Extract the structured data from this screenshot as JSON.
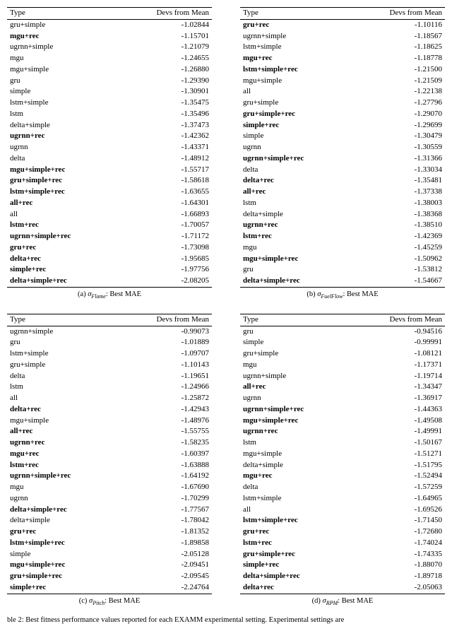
{
  "headers": {
    "type": "Type",
    "devs": "Devs from Mean"
  },
  "panels": [
    {
      "id": "a",
      "caption_prefix": "(a) ",
      "sigma_sub": "Flame",
      "caption_suffix": ": Best MAE",
      "rows": [
        {
          "t": "gru+simple",
          "v": "-1.02844",
          "b": false
        },
        {
          "t": "mgu+rec",
          "v": "-1.15701",
          "b": true
        },
        {
          "t": "ugrnn+simple",
          "v": "-1.21079",
          "b": false
        },
        {
          "t": "mgu",
          "v": "-1.24655",
          "b": false
        },
        {
          "t": "mgu+simple",
          "v": "-1.26880",
          "b": false
        },
        {
          "t": "gru",
          "v": "-1.29390",
          "b": false
        },
        {
          "t": "simple",
          "v": "-1.30901",
          "b": false
        },
        {
          "t": "lstm+simple",
          "v": "-1.35475",
          "b": false
        },
        {
          "t": "lstm",
          "v": "-1.35496",
          "b": false
        },
        {
          "t": "delta+simple",
          "v": "-1.37473",
          "b": false
        },
        {
          "t": "ugrnn+rec",
          "v": "-1.42362",
          "b": true
        },
        {
          "t": "ugrnn",
          "v": "-1.43371",
          "b": false
        },
        {
          "t": "delta",
          "v": "-1.48912",
          "b": false
        },
        {
          "t": "mgu+simple+rec",
          "v": "-1.55717",
          "b": true
        },
        {
          "t": "gru+simple+rec",
          "v": "-1.58618",
          "b": true
        },
        {
          "t": "lstm+simple+rec",
          "v": "-1.63655",
          "b": true
        },
        {
          "t": "all+rec",
          "v": "-1.64301",
          "b": true
        },
        {
          "t": "all",
          "v": "-1.66893",
          "b": false
        },
        {
          "t": "lstm+rec",
          "v": "-1.70057",
          "b": true
        },
        {
          "t": "ugrnn+simple+rec",
          "v": "-1.71172",
          "b": true
        },
        {
          "t": "gru+rec",
          "v": "-1.73098",
          "b": true
        },
        {
          "t": "delta+rec",
          "v": "-1.95685",
          "b": true
        },
        {
          "t": "simple+rec",
          "v": "-1.97756",
          "b": true
        },
        {
          "t": "delta+simple+rec",
          "v": "-2.08205",
          "b": true
        }
      ]
    },
    {
      "id": "b",
      "caption_prefix": "(b) ",
      "sigma_sub": "FuelFlow",
      "caption_suffix": ": Best MAE",
      "rows": [
        {
          "t": "gru+rec",
          "v": "-1.10116",
          "b": true
        },
        {
          "t": "ugrnn+simple",
          "v": "-1.18567",
          "b": false
        },
        {
          "t": "lstm+simple",
          "v": "-1.18625",
          "b": false
        },
        {
          "t": "mgu+rec",
          "v": "-1.18778",
          "b": true
        },
        {
          "t": "lstm+simple+rec",
          "v": "-1.21500",
          "b": true
        },
        {
          "t": "mgu+simple",
          "v": "-1.21509",
          "b": false
        },
        {
          "t": "all",
          "v": "-1.22138",
          "b": false
        },
        {
          "t": "gru+simple",
          "v": "-1.27796",
          "b": false
        },
        {
          "t": "gru+simple+rec",
          "v": "-1.29070",
          "b": true
        },
        {
          "t": "simple+rec",
          "v": "-1.29699",
          "b": true
        },
        {
          "t": "simple",
          "v": "-1.30479",
          "b": false
        },
        {
          "t": "ugrnn",
          "v": "-1.30559",
          "b": false
        },
        {
          "t": "ugrnn+simple+rec",
          "v": "-1.31366",
          "b": true
        },
        {
          "t": "delta",
          "v": "-1.33034",
          "b": false
        },
        {
          "t": "delta+rec",
          "v": "-1.35481",
          "b": true
        },
        {
          "t": "all+rec",
          "v": "-1.37338",
          "b": true
        },
        {
          "t": "lstm",
          "v": "-1.38003",
          "b": false
        },
        {
          "t": "delta+simple",
          "v": "-1.38368",
          "b": false
        },
        {
          "t": "ugrnn+rec",
          "v": "-1.38510",
          "b": true
        },
        {
          "t": "lstm+rec",
          "v": "-1.42369",
          "b": true
        },
        {
          "t": "mgu",
          "v": "-1.45259",
          "b": false
        },
        {
          "t": "mgu+simple+rec",
          "v": "-1.50962",
          "b": true
        },
        {
          "t": "gru",
          "v": "-1.53812",
          "b": false
        },
        {
          "t": "delta+simple+rec",
          "v": "-1.54667",
          "b": true
        }
      ]
    },
    {
      "id": "c",
      "caption_prefix": "(c) ",
      "sigma_sub": "Pitch",
      "caption_suffix": ": Best MAE",
      "rows": [
        {
          "t": "ugrnn+simple",
          "v": "-0.99073",
          "b": false
        },
        {
          "t": "gru",
          "v": "-1.01889",
          "b": false
        },
        {
          "t": "lstm+simple",
          "v": "-1.09707",
          "b": false
        },
        {
          "t": "gru+simple",
          "v": "-1.10143",
          "b": false
        },
        {
          "t": "delta",
          "v": "-1.19651",
          "b": false
        },
        {
          "t": "lstm",
          "v": "-1.24966",
          "b": false
        },
        {
          "t": "all",
          "v": "-1.25872",
          "b": false
        },
        {
          "t": "delta+rec",
          "v": "-1.42943",
          "b": true
        },
        {
          "t": "mgu+simple",
          "v": "-1.48976",
          "b": false
        },
        {
          "t": "all+rec",
          "v": "-1.55755",
          "b": true
        },
        {
          "t": "ugrnn+rec",
          "v": "-1.58235",
          "b": true
        },
        {
          "t": "mgu+rec",
          "v": "-1.60397",
          "b": true
        },
        {
          "t": "lstm+rec",
          "v": "-1.63888",
          "b": true
        },
        {
          "t": "ugrnn+simple+rec",
          "v": "-1.64192",
          "b": true
        },
        {
          "t": "mgu",
          "v": "-1.67690",
          "b": false
        },
        {
          "t": "ugrnn",
          "v": "-1.70299",
          "b": false
        },
        {
          "t": "delta+simple+rec",
          "v": "-1.77567",
          "b": true
        },
        {
          "t": "delta+simple",
          "v": "-1.78042",
          "b": false
        },
        {
          "t": "gru+rec",
          "v": "-1.81352",
          "b": true
        },
        {
          "t": "lstm+simple+rec",
          "v": "-1.89858",
          "b": true
        },
        {
          "t": "simple",
          "v": "-2.05128",
          "b": false
        },
        {
          "t": "mgu+simple+rec",
          "v": "-2.09451",
          "b": true
        },
        {
          "t": "gru+simple+rec",
          "v": "-2.09545",
          "b": true
        },
        {
          "t": "simple+rec",
          "v": "-2.24764",
          "b": true
        }
      ]
    },
    {
      "id": "d",
      "caption_prefix": "(d) ",
      "sigma_sub": "RPM",
      "caption_suffix": ": Best MAE",
      "rows": [
        {
          "t": "gru",
          "v": "-0.94516",
          "b": false
        },
        {
          "t": "simple",
          "v": "-0.99991",
          "b": false
        },
        {
          "t": "gru+simple",
          "v": "-1.08121",
          "b": false
        },
        {
          "t": "mgu",
          "v": "-1.17371",
          "b": false
        },
        {
          "t": "ugrnn+simple",
          "v": "-1.19714",
          "b": false
        },
        {
          "t": "all+rec",
          "v": "-1.34347",
          "b": true
        },
        {
          "t": "ugrnn",
          "v": "-1.36917",
          "b": false
        },
        {
          "t": "ugrnn+simple+rec",
          "v": "-1.44363",
          "b": true
        },
        {
          "t": "mgu+simple+rec",
          "v": "-1.49508",
          "b": true
        },
        {
          "t": "ugrnn+rec",
          "v": "-1.49991",
          "b": true
        },
        {
          "t": "lstm",
          "v": "-1.50167",
          "b": false
        },
        {
          "t": "mgu+simple",
          "v": "-1.51271",
          "b": false
        },
        {
          "t": "delta+simple",
          "v": "-1.51795",
          "b": false
        },
        {
          "t": "mgu+rec",
          "v": "-1.52494",
          "b": true
        },
        {
          "t": "delta",
          "v": "-1.57259",
          "b": false
        },
        {
          "t": "lstm+simple",
          "v": "-1.64965",
          "b": false
        },
        {
          "t": "all",
          "v": "-1.69526",
          "b": false
        },
        {
          "t": "lstm+simple+rec",
          "v": "-1.71450",
          "b": true
        },
        {
          "t": "gru+rec",
          "v": "-1.72680",
          "b": true
        },
        {
          "t": "lstm+rec",
          "v": "-1.74024",
          "b": true
        },
        {
          "t": "gru+simple+rec",
          "v": "-1.74335",
          "b": true
        },
        {
          "t": "simple+rec",
          "v": "-1.88070",
          "b": true
        },
        {
          "t": "delta+simple+rec",
          "v": "-1.89718",
          "b": true
        },
        {
          "t": "delta+rec",
          "v": "-2.05063",
          "b": true
        }
      ]
    }
  ],
  "footer": "ble 2: Best fitness performance values reported for each EXAMM experimental setting. Experimental settings are"
}
